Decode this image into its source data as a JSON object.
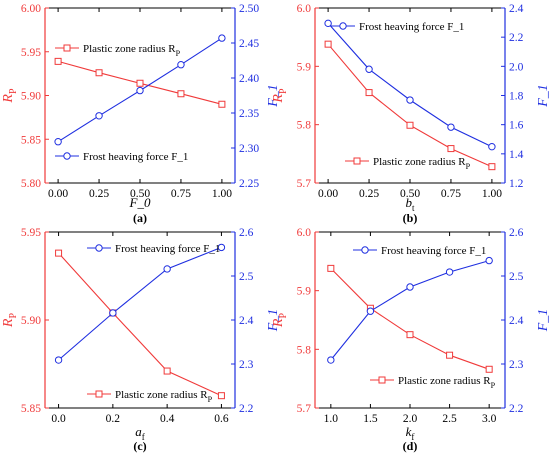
{
  "colors": {
    "red": "#f03a3a",
    "blue": "#1f2fe0",
    "axis": "#000000",
    "background": "#ffffff"
  },
  "chart_data": [
    {
      "id": "a",
      "type": "line",
      "caption": "(a)",
      "xlabel": "F_0",
      "ylabel_left": "R",
      "ylabel_left_sub": "P",
      "ylabel_right": "F_1",
      "xlim": [
        -0.08,
        1.08
      ],
      "xticks": [
        0.0,
        0.25,
        0.5,
        0.75,
        1.0
      ],
      "xtick_labels": [
        "0.00",
        "0.25",
        "0.50",
        "0.75",
        "1.00"
      ],
      "ylim_left": [
        5.8,
        6.0
      ],
      "yticks_left": [
        5.8,
        5.85,
        5.9,
        5.95,
        6.0
      ],
      "ytick_labels_left": [
        "5.80",
        "5.85",
        "5.90",
        "5.95",
        "6.00"
      ],
      "ylim_right": [
        2.25,
        2.5
      ],
      "yticks_right": [
        2.25,
        2.3,
        2.35,
        2.4,
        2.45,
        2.5
      ],
      "ytick_labels_right": [
        "2.25",
        "2.30",
        "2.35",
        "2.40",
        "2.45",
        "2.50"
      ],
      "series": [
        {
          "name": "Plastic zone radius R",
          "name_sub": "P",
          "axis": "left",
          "marker": "square",
          "color": "red",
          "x": [
            0.0,
            0.25,
            0.5,
            0.75,
            1.0
          ],
          "y": [
            5.939,
            5.926,
            5.914,
            5.902,
            5.89
          ]
        },
        {
          "name": "Frost heaving force F_1",
          "name_sub": "",
          "axis": "right",
          "marker": "circle",
          "color": "blue",
          "x": [
            0.0,
            0.25,
            0.5,
            0.75,
            1.0
          ],
          "y": [
            2.309,
            2.346,
            2.382,
            2.419,
            2.457
          ]
        }
      ],
      "legend": [
        {
          "series": 0,
          "placement": "upper-left"
        },
        {
          "series": 1,
          "placement": "lower-left"
        }
      ]
    },
    {
      "id": "b",
      "type": "line",
      "caption": "(b)",
      "xlabel": "b",
      "xlabel_sub": "t",
      "ylabel_left": "R",
      "ylabel_left_sub": "P",
      "ylabel_right": "F_1",
      "xlim": [
        -0.08,
        1.08
      ],
      "xticks": [
        0.0,
        0.25,
        0.5,
        0.75,
        1.0
      ],
      "xtick_labels": [
        "0.00",
        "0.25",
        "0.50",
        "0.75",
        "1.00"
      ],
      "ylim_left": [
        5.7,
        6.0
      ],
      "yticks_left": [
        5.7,
        5.8,
        5.9,
        6.0
      ],
      "ytick_labels_left": [
        "5.7",
        "5.8",
        "5.9",
        "6.0"
      ],
      "ylim_right": [
        1.2,
        2.4
      ],
      "yticks_right": [
        1.2,
        1.4,
        1.6,
        1.8,
        2.0,
        2.2,
        2.4
      ],
      "ytick_labels_right": [
        "1.2",
        "1.4",
        "1.6",
        "1.8",
        "2.0",
        "2.2",
        "2.4"
      ],
      "series": [
        {
          "name": "Plastic zone radius R",
          "name_sub": "P",
          "axis": "left",
          "marker": "square",
          "color": "red",
          "x": [
            0.0,
            0.25,
            0.5,
            0.75,
            1.0
          ],
          "y": [
            5.938,
            5.855,
            5.799,
            5.759,
            5.728
          ]
        },
        {
          "name": "Frost heaving force F_1",
          "name_sub": "",
          "axis": "right",
          "marker": "circle",
          "color": "blue",
          "x": [
            0.0,
            0.25,
            0.5,
            0.75,
            1.0
          ],
          "y": [
            2.295,
            1.98,
            1.769,
            1.583,
            1.449
          ]
        }
      ],
      "legend": [
        {
          "series": 1,
          "placement": "top-center"
        },
        {
          "series": 0,
          "placement": "lower-center"
        }
      ]
    },
    {
      "id": "c",
      "type": "line",
      "caption": "(c)",
      "xlabel": "a",
      "xlabel_sub": "f",
      "ylabel_left": "R",
      "ylabel_left_sub": "P",
      "ylabel_right": "F_1",
      "xlim": [
        -0.05,
        0.65
      ],
      "xticks": [
        0.0,
        0.2,
        0.4,
        0.6
      ],
      "xtick_labels": [
        "0.0",
        "0.2",
        "0.4",
        "0.6"
      ],
      "ylim_left": [
        5.85,
        5.95
      ],
      "yticks_left": [
        5.85,
        5.9,
        5.95
      ],
      "ytick_labels_left": [
        "5.85",
        "5.90",
        "5.95"
      ],
      "ylim_right": [
        2.2,
        2.6
      ],
      "yticks_right": [
        2.2,
        2.3,
        2.4,
        2.5,
        2.6
      ],
      "ytick_labels_right": [
        "2.2",
        "2.3",
        "2.4",
        "2.5",
        "2.6"
      ],
      "series": [
        {
          "name": "Plastic zone radius R",
          "name_sub": "P",
          "axis": "left",
          "marker": "square",
          "color": "red",
          "x": [
            0.0,
            0.2,
            0.4,
            0.6
          ],
          "y": [
            5.938,
            5.904,
            5.871,
            5.857
          ]
        },
        {
          "name": "Frost heaving force F_1",
          "name_sub": "",
          "axis": "right",
          "marker": "circle",
          "color": "blue",
          "x": [
            0.0,
            0.2,
            0.4,
            0.6
          ],
          "y": [
            2.309,
            2.416,
            2.516,
            2.565
          ]
        }
      ],
      "legend": [
        {
          "series": 1,
          "placement": "top-center"
        },
        {
          "series": 0,
          "placement": "lower-center"
        }
      ]
    },
    {
      "id": "d",
      "type": "line",
      "caption": "(d)",
      "xlabel": "k",
      "xlabel_sub": "f",
      "ylabel_left": "R",
      "ylabel_left_sub": "P",
      "ylabel_right": "F_1",
      "xlim": [
        0.8,
        3.2
      ],
      "xticks": [
        1.0,
        1.5,
        2.0,
        2.5,
        3.0
      ],
      "xtick_labels": [
        "1.0",
        "1.5",
        "2.0",
        "2.5",
        "3.0"
      ],
      "ylim_left": [
        5.7,
        6.0
      ],
      "yticks_left": [
        5.7,
        5.8,
        5.9,
        6.0
      ],
      "ytick_labels_left": [
        "5.7",
        "5.8",
        "5.9",
        "6.0"
      ],
      "ylim_right": [
        2.2,
        2.6
      ],
      "yticks_right": [
        2.2,
        2.3,
        2.4,
        2.5,
        2.6
      ],
      "ytick_labels_right": [
        "2.2",
        "2.3",
        "2.4",
        "2.5",
        "2.6"
      ],
      "series": [
        {
          "name": "Plastic zone radius R",
          "name_sub": "P",
          "axis": "left",
          "marker": "square",
          "color": "red",
          "x": [
            1.0,
            1.5,
            2.0,
            2.5,
            3.0
          ],
          "y": [
            5.938,
            5.87,
            5.825,
            5.79,
            5.766
          ]
        },
        {
          "name": "Frost heaving force F_1",
          "name_sub": "",
          "axis": "right",
          "marker": "circle",
          "color": "blue",
          "x": [
            1.0,
            1.5,
            2.0,
            2.5,
            3.0
          ],
          "y": [
            2.309,
            2.42,
            2.475,
            2.509,
            2.535
          ]
        }
      ],
      "legend": [
        {
          "series": 1,
          "placement": "top-center"
        },
        {
          "series": 0,
          "placement": "lower-right"
        }
      ]
    }
  ]
}
